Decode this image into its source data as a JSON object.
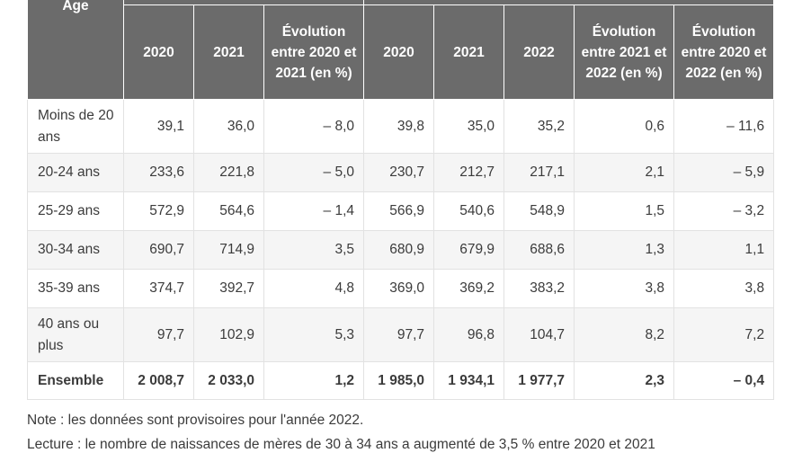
{
  "table": {
    "age_header": "Âge",
    "columns": [
      "2020",
      "2021",
      "Évolution entre 2020 et 2021 (en %)",
      "2020",
      "2021",
      "2022",
      "Évolution entre 2021 et 2022 (en %)",
      "Évolution entre 2020 et 2022 (en %)"
    ],
    "rows": [
      {
        "label": "Moins de 20 ans",
        "values": [
          "39,1",
          "36,0",
          "– 8,0",
          "39,8",
          "35,0",
          "35,2",
          "0,6",
          "– 11,6"
        ]
      },
      {
        "label": "20-24 ans",
        "values": [
          "233,6",
          "221,8",
          "– 5,0",
          "230,7",
          "212,7",
          "217,1",
          "2,1",
          "– 5,9"
        ]
      },
      {
        "label": "25-29 ans",
        "values": [
          "572,9",
          "564,6",
          "– 1,4",
          "566,9",
          "540,6",
          "548,9",
          "1,5",
          "– 3,2"
        ]
      },
      {
        "label": "30-34 ans",
        "values": [
          "690,7",
          "714,9",
          "3,5",
          "680,9",
          "679,9",
          "688,6",
          "1,3",
          "1,1"
        ]
      },
      {
        "label": "35-39 ans",
        "values": [
          "374,7",
          "392,7",
          "4,8",
          "369,0",
          "369,2",
          "383,2",
          "3,8",
          "3,8"
        ]
      },
      {
        "label": "40 ans ou plus",
        "values": [
          "97,7",
          "102,9",
          "5,3",
          "97,7",
          "96,8",
          "104,7",
          "8,2",
          "7,2"
        ]
      },
      {
        "label": "Ensemble",
        "values": [
          "2 008,7",
          "2 033,0",
          "1,2",
          "1 985,0",
          "1 934,1",
          "1 977,7",
          "2,3",
          "– 0,4"
        ]
      }
    ]
  },
  "notes": {
    "note": "Note : les données sont provisoires pour l'année 2022.",
    "reading": "Lecture : le nombre de naissances de mères de 30 à 34 ans a augmenté de 3,5 % entre 2020 et 2021"
  }
}
